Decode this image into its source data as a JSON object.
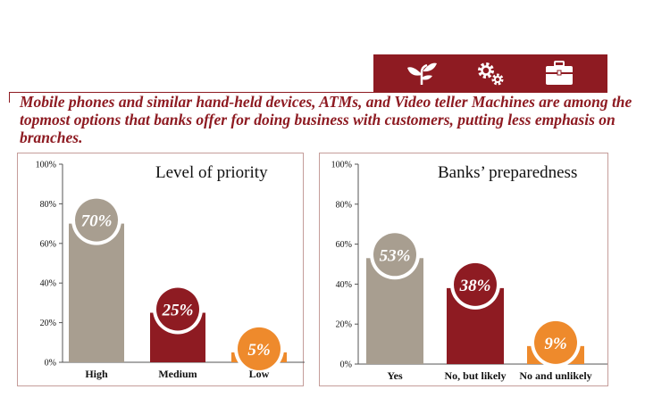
{
  "banner": {
    "icons": [
      "sprout-icon",
      "gears-icon",
      "briefcase-icon"
    ],
    "color": "#8e1b22"
  },
  "headline": "Mobile phones and similar hand-held devices, ATMs, and Video teller Machines are among the topmost options that banks offer for doing business with customers, putting less emphasis on branches.",
  "colors": {
    "gray": "#a89e90",
    "maroon": "#8e1b22",
    "orange": "#ee8a2c",
    "border": "#c59d9a"
  },
  "chart_data": [
    {
      "type": "bar",
      "title": "Level of priority",
      "categories": [
        "High",
        "Medium",
        "Low"
      ],
      "values": [
        70,
        25,
        5
      ],
      "data_labels": [
        "70%",
        "25%",
        "5%"
      ],
      "bar_colors": [
        "#a89e90",
        "#8e1b22",
        "#ee8a2c"
      ],
      "ylim": [
        0,
        100
      ],
      "yticks": [
        "0%",
        "20%",
        "40%",
        "60%",
        "80%",
        "100%"
      ],
      "grid": false
    },
    {
      "type": "bar",
      "title": "Banks’ preparedness",
      "categories": [
        "Yes",
        "No, but likely",
        "No and unlikely"
      ],
      "values": [
        53,
        38,
        9
      ],
      "data_labels": [
        "53%",
        "38%",
        "9%"
      ],
      "bar_colors": [
        "#a89e90",
        "#8e1b22",
        "#ee8a2c"
      ],
      "ylim": [
        0,
        100
      ],
      "yticks": [
        "0%",
        "20%",
        "40%",
        "60%",
        "80%",
        "100%"
      ],
      "grid": false
    }
  ]
}
